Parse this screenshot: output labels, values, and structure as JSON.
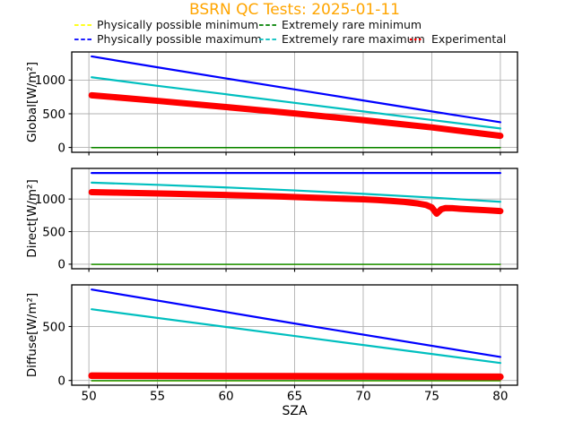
{
  "figure": {
    "title": "BSRN QC Tests: 2025-01-11",
    "title_color": "#FFA500",
    "xlabel": "SZA",
    "background": "#FFFFFF"
  },
  "axes_style": {
    "grid_color": "#B0B0B0",
    "border_color": "#000000",
    "tick_color": "#000000",
    "text_color": "#000000"
  },
  "legend": {
    "rows": [
      [
        {
          "label": "Physically possible minimum",
          "color": "#FFFF00",
          "dash": "dashed"
        },
        {
          "label": "Extremely rare minimum",
          "color": "#008000",
          "dash": "dashed"
        }
      ],
      [
        {
          "label": "Physically possible maximum",
          "color": "#0000FF",
          "dash": "dashed"
        },
        {
          "label": "Extremely rare maximum",
          "color": "#00BFBF",
          "dash": "dashed"
        },
        {
          "label": "Experimental",
          "color": "#FF0000",
          "dash": "dotted"
        }
      ]
    ]
  },
  "chart_data": [
    {
      "type": "line",
      "name": "global",
      "ylabel": "Global[W/m²]",
      "xlim": [
        48.75,
        81.25
      ],
      "ylim": [
        -72,
        1418
      ],
      "xticks": [
        50,
        55,
        60,
        65,
        70,
        75,
        80
      ],
      "yticks": [
        0,
        500,
        1000
      ],
      "show_xticklabels": false,
      "grid": true,
      "series": [
        {
          "name": "Physically possible minimum",
          "color": "#FFFF00",
          "width": 1.4,
          "x": [
            50.2,
            80
          ],
          "y": [
            -4,
            -4
          ]
        },
        {
          "name": "Extremely rare minimum",
          "color": "#008000",
          "width": 1.4,
          "x": [
            50.2,
            80
          ],
          "y": [
            -2,
            -2
          ]
        },
        {
          "name": "Physically possible maximum",
          "color": "#0000FF",
          "width": 2.2,
          "x": [
            50.2,
            55,
            60,
            65,
            70,
            75,
            80
          ],
          "y": [
            1352,
            1190,
            1025,
            862,
            698,
            535,
            375
          ]
        },
        {
          "name": "Extremely rare maximum",
          "color": "#00BFBF",
          "width": 2.2,
          "x": [
            50.2,
            55,
            60,
            65,
            70,
            75,
            80
          ],
          "y": [
            1042,
            915,
            790,
            662,
            535,
            408,
            282
          ]
        },
        {
          "name": "Experimental",
          "color": "#FF0000",
          "width": 7,
          "x": [
            50.2,
            55,
            60,
            65,
            70,
            75,
            80
          ],
          "y": [
            775,
            692,
            600,
            505,
            405,
            298,
            172
          ]
        }
      ]
    },
    {
      "type": "line",
      "name": "direct",
      "ylabel": "Direct[W/m²]",
      "xlim": [
        48.75,
        81.25
      ],
      "ylim": [
        -70,
        1470
      ],
      "xticks": [
        50,
        55,
        60,
        65,
        70,
        75,
        80
      ],
      "yticks": [
        0,
        500,
        1000
      ],
      "show_xticklabels": false,
      "grid": true,
      "series": [
        {
          "name": "Physically possible minimum",
          "color": "#FFFF00",
          "width": 1.4,
          "x": [
            50.2,
            80
          ],
          "y": [
            -4,
            -4
          ]
        },
        {
          "name": "Extremely rare minimum",
          "color": "#008000",
          "width": 1.4,
          "x": [
            50.2,
            80
          ],
          "y": [
            -2,
            -2
          ]
        },
        {
          "name": "Physically possible maximum",
          "color": "#0000FF",
          "width": 2.2,
          "x": [
            50.2,
            80
          ],
          "y": [
            1400,
            1400
          ]
        },
        {
          "name": "Extremely rare maximum",
          "color": "#00BFBF",
          "width": 2.2,
          "x": [
            50.2,
            55,
            60,
            65,
            70,
            75,
            80
          ],
          "y": [
            1252,
            1218,
            1178,
            1132,
            1080,
            1022,
            958
          ]
        },
        {
          "name": "Experimental",
          "color": "#FF0000",
          "width": 7,
          "x": [
            50.2,
            52,
            54,
            56,
            58,
            60,
            62,
            64,
            66,
            68,
            70,
            71,
            72,
            73,
            74,
            74.6,
            75.0,
            75.35,
            75.7,
            76,
            76.5,
            77,
            78,
            79,
            80
          ],
          "y": [
            1105,
            1098,
            1090,
            1081,
            1072,
            1062,
            1050,
            1038,
            1024,
            1010,
            995,
            985,
            972,
            956,
            932,
            908,
            872,
            775,
            845,
            862,
            860,
            852,
            840,
            828,
            815
          ]
        }
      ]
    },
    {
      "type": "line",
      "name": "diffuse",
      "ylabel": "Diffuse[W/m²]",
      "xlim": [
        48.75,
        81.25
      ],
      "ylim": [
        -44,
        886
      ],
      "xticks": [
        50,
        55,
        60,
        65,
        70,
        75,
        80
      ],
      "yticks": [
        0,
        500
      ],
      "show_xticklabels": true,
      "grid": true,
      "series": [
        {
          "name": "Physically possible minimum",
          "color": "#FFFF00",
          "width": 1.4,
          "x": [
            50.2,
            80
          ],
          "y": [
            -4,
            -4
          ]
        },
        {
          "name": "Extremely rare minimum",
          "color": "#008000",
          "width": 1.4,
          "x": [
            50.2,
            80
          ],
          "y": [
            -2,
            -2
          ]
        },
        {
          "name": "Physically possible maximum",
          "color": "#0000FF",
          "width": 2.2,
          "x": [
            50.2,
            65,
            80
          ],
          "y": [
            843,
            528,
            218
          ]
        },
        {
          "name": "Extremely rare maximum",
          "color": "#00BFBF",
          "width": 2.2,
          "x": [
            50.2,
            65,
            80
          ],
          "y": [
            660,
            412,
            162
          ]
        },
        {
          "name": "Experimental",
          "color": "#FF0000",
          "width": 7.5,
          "x": [
            50.2,
            55,
            60,
            65,
            70,
            75,
            80
          ],
          "y": [
            44,
            42,
            40,
            39,
            38,
            36,
            34
          ]
        }
      ]
    }
  ]
}
